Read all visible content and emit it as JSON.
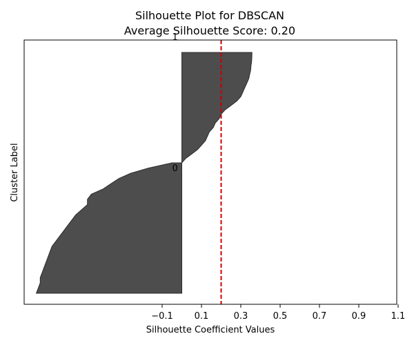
{
  "chart_data": {
    "type": "area",
    "title": "Silhouette Plot for DBSCAN",
    "subtitle": "Average Silhouette Score: 0.20",
    "xlabel": "Silhouette Coefficient Values",
    "ylabel": "Cluster Label",
    "xticks": [
      -0.1,
      0.1,
      0.3,
      0.5,
      0.7,
      0.9,
      1.1
    ],
    "xtick_labels": [
      "−0.1",
      "0.1",
      "0.3",
      "0.5",
      "0.7",
      "0.9",
      "1.1"
    ],
    "average_score": 0.2,
    "average_line_color": "#cc0000",
    "fill_color": "#4d4d4d",
    "edge_color": "#2b2b2b",
    "series": [
      {
        "name": "0",
        "values": [
          -0.74,
          -0.73,
          -0.72,
          -0.72,
          -0.71,
          -0.7,
          -0.69,
          -0.68,
          -0.67,
          -0.66,
          -0.64,
          -0.62,
          -0.6,
          -0.58,
          -0.56,
          -0.54,
          -0.51,
          -0.48,
          -0.48,
          -0.46,
          -0.4,
          -0.36,
          -0.32,
          -0.26,
          -0.17,
          -0.05
        ]
      },
      {
        "name": "1",
        "values": [
          0.0,
          0.02,
          0.05,
          0.08,
          0.1,
          0.12,
          0.13,
          0.14,
          0.16,
          0.17,
          0.19,
          0.2,
          0.22,
          0.25,
          0.28,
          0.3,
          0.31,
          0.32,
          0.33,
          0.34,
          0.345,
          0.35,
          0.352,
          0.355,
          0.356,
          0.357
        ]
      }
    ],
    "grid": false,
    "legend": "none"
  }
}
